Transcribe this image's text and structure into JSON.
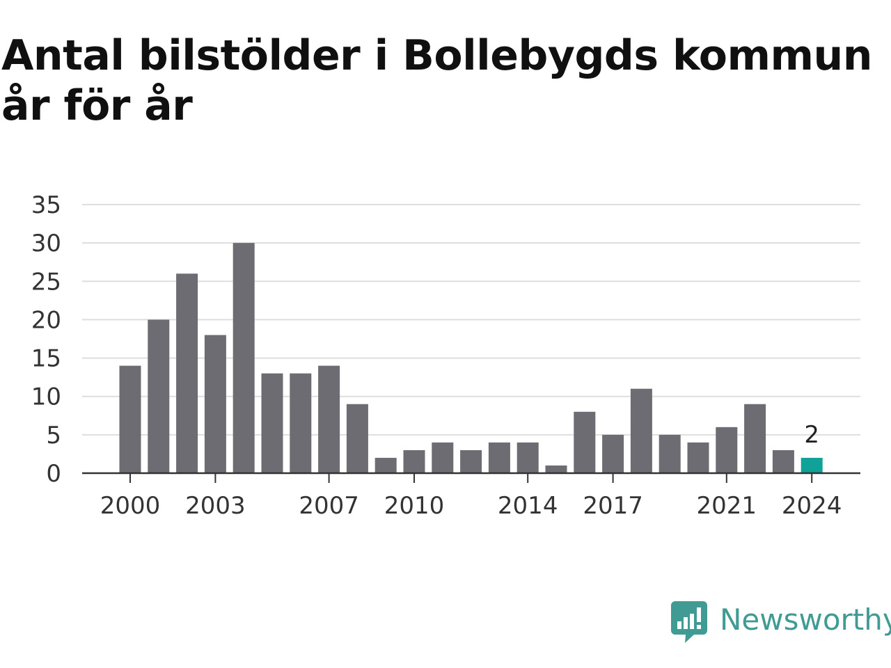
{
  "chart_data": {
    "type": "bar",
    "title": "Antal bilstölder i Bollebygds kommun år för år",
    "categories": [
      "2000",
      "2001",
      "2002",
      "2003",
      "2004",
      "2005",
      "2006",
      "2007",
      "2008",
      "2009",
      "2010",
      "2011",
      "2012",
      "2013",
      "2014",
      "2015",
      "2016",
      "2017",
      "2018",
      "2019",
      "2020",
      "2021",
      "2022",
      "2023",
      "2024"
    ],
    "values": [
      14,
      20,
      26,
      18,
      30,
      13,
      13,
      14,
      9,
      2,
      3,
      4,
      3,
      4,
      4,
      1,
      8,
      5,
      11,
      5,
      4,
      6,
      9,
      3,
      2
    ],
    "x_tick_labels": [
      "2000",
      "2003",
      "2007",
      "2010",
      "2014",
      "2017",
      "2021",
      "2024"
    ],
    "y_ticks": [
      0,
      5,
      10,
      15,
      20,
      25,
      30,
      35
    ],
    "ylim": [
      0,
      35
    ],
    "grid": true,
    "highlight": {
      "category": "2024",
      "label": "2",
      "color": "#10a198"
    },
    "bar_color": "#6d6c72",
    "xlabel": "",
    "ylabel": ""
  },
  "brand": {
    "name": "Newsworthy",
    "icon": "bar-chart-speech-bubble-icon",
    "color": "#3f9b93"
  }
}
